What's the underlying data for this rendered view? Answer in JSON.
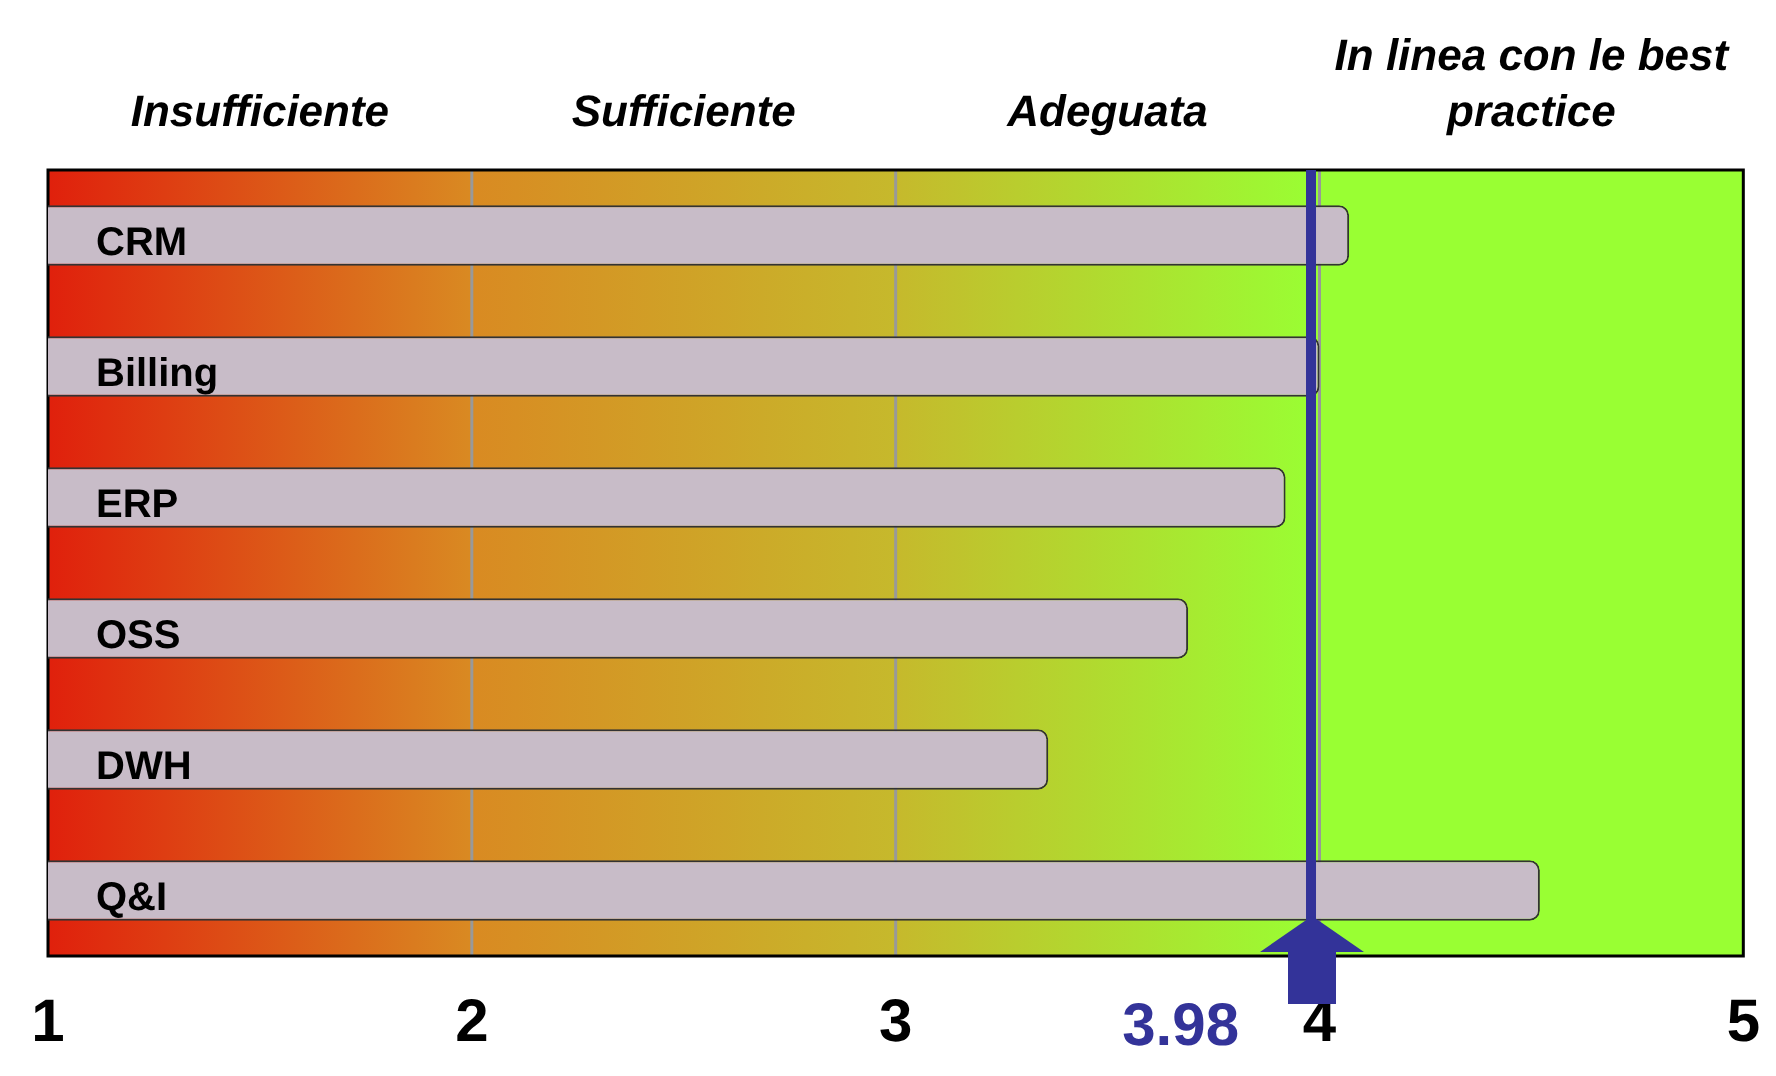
{
  "chart_data": {
    "type": "bar",
    "orientation": "horizontal",
    "categories": [
      "CRM",
      "Billing",
      "ERP",
      "OSS",
      "DWH",
      "Q&I"
    ],
    "values": [
      4.07,
      4.0,
      3.92,
      3.69,
      3.36,
      4.52
    ],
    "color": "#c8bcc8",
    "xlim": [
      1,
      5
    ],
    "xticks": [
      1,
      2,
      3,
      4,
      5
    ],
    "grid": "x",
    "bands": [
      {
        "axis": "x",
        "from": 1,
        "to": 2,
        "label": "Insufficiente",
        "color": "#e0200c"
      },
      {
        "axis": "x",
        "from": 2,
        "to": 3,
        "label": "Sufficiente",
        "color": "#d98a22"
      },
      {
        "axis": "x",
        "from": 3,
        "to": 4,
        "label": "Adeguata",
        "color": "#c6b92c"
      },
      {
        "axis": "x",
        "from": 4,
        "to": 5,
        "label": "In linea con le best practice",
        "color": "#99ff33"
      }
    ],
    "ref_lines": [
      {
        "axis": "x",
        "value": 3.98,
        "label": "3.98",
        "color": "#333399"
      }
    ]
  }
}
